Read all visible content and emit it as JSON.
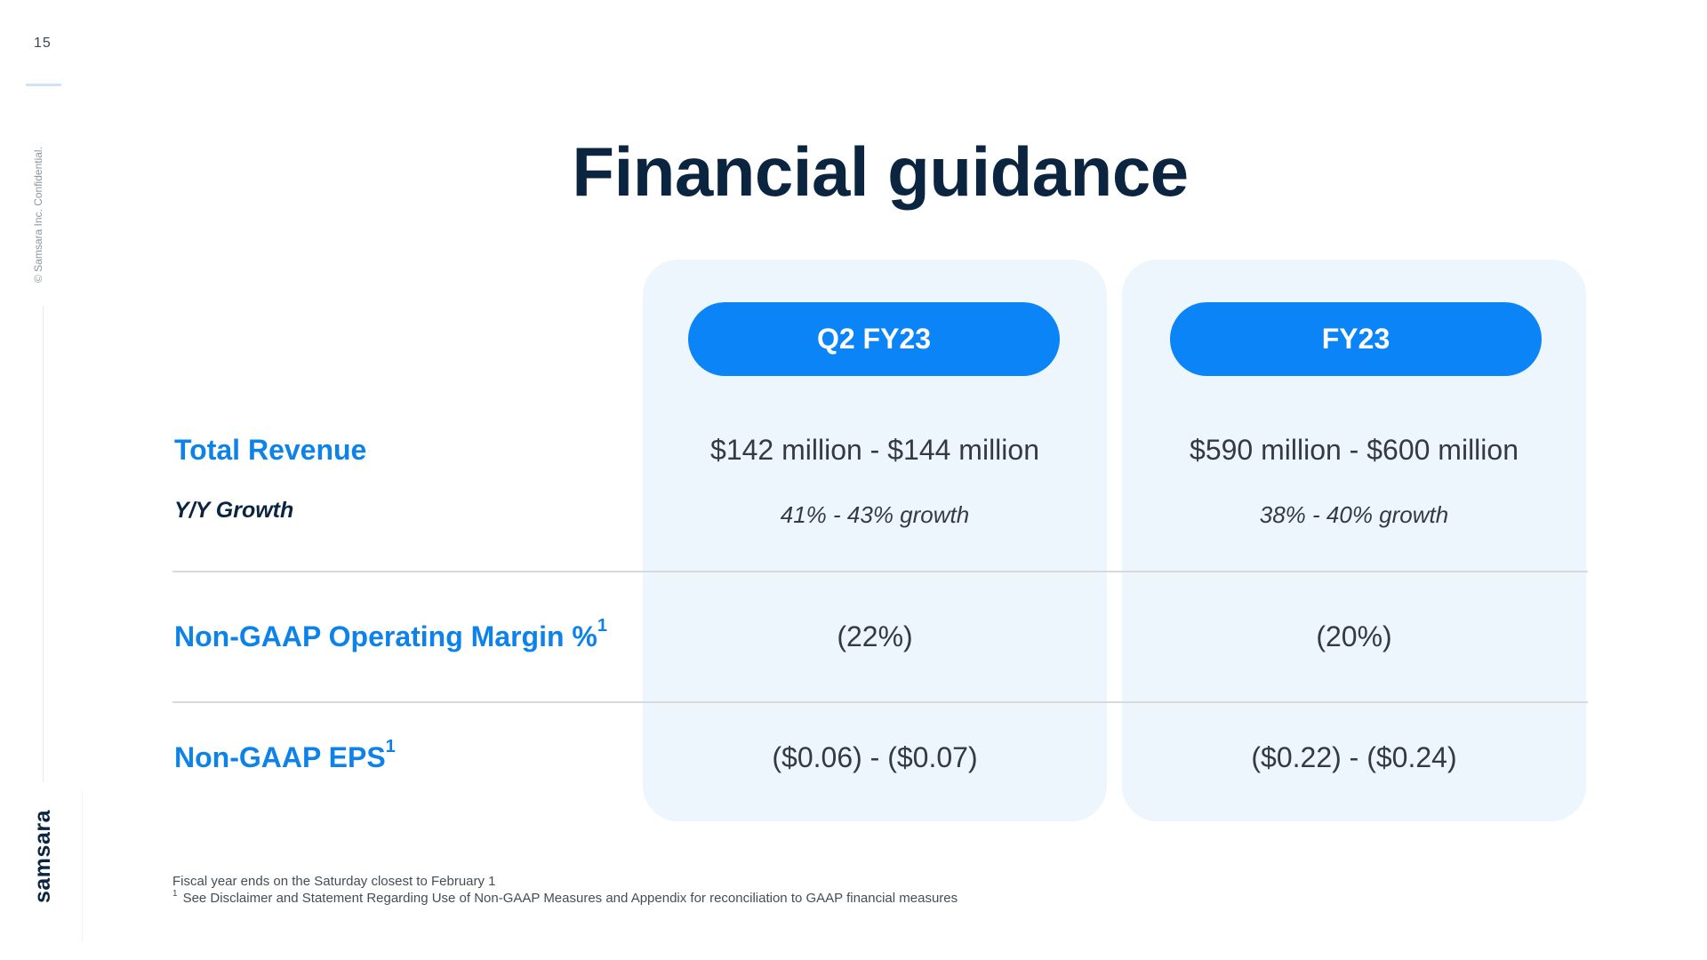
{
  "rail": {
    "page_number": "15",
    "confidential": "© Samsara Inc. Confidential.",
    "brand": "samsara"
  },
  "title": "Financial guidance",
  "columns": [
    {
      "label": "Q2 FY23"
    },
    {
      "label": "FY23"
    }
  ],
  "rows": {
    "total_revenue": {
      "label": "Total Revenue",
      "q2": "$142 million - $144 million",
      "fy": "$590 million - $600 million"
    },
    "yy_growth": {
      "label": "Y/Y Growth",
      "q2": "41% - 43% growth",
      "fy": "38% - 40% growth"
    },
    "operating_margin": {
      "label": "Non-GAAP Operating Margin %",
      "footnote_mark": "1",
      "q2": "(22%)",
      "fy": "(20%)"
    },
    "eps": {
      "label": "Non-GAAP EPS",
      "footnote_mark": "1",
      "q2": "($0.06) - ($0.07)",
      "fy": "($0.22) - ($0.24)"
    }
  },
  "footnotes": {
    "line1": "Fiscal year ends on the Saturday closest to February 1",
    "line2_mark": "1",
    "line2": "See Disclaimer and Statement Regarding Use of Non-GAAP Measures and Appendix for reconciliation to GAAP financial measures"
  },
  "colors": {
    "accent_blue": "#0a84f6",
    "label_blue": "#0d83ea",
    "navy": "#0b2540",
    "panel_bg": "#edf5fd"
  }
}
